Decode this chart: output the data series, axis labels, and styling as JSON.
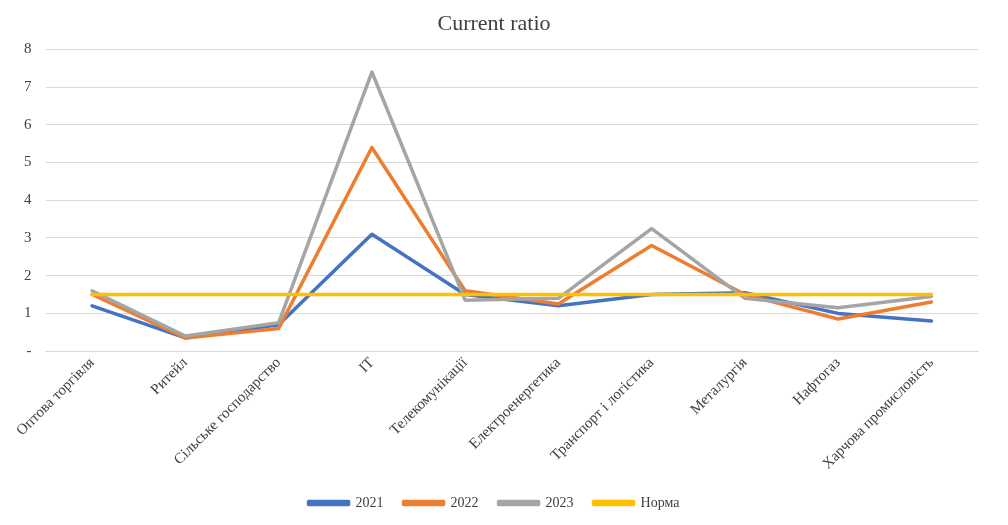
{
  "chart_data": {
    "type": "line",
    "title": "Current ratio",
    "categories": [
      "Оптова торгівля",
      "Ритейл",
      "Сільське господарство",
      "IT",
      "Телекомунікації",
      "Електроенергетика",
      "Транспорт і логістика",
      "Металургія",
      "Нафтогаз",
      "Харчова промисловість"
    ],
    "series": [
      {
        "name": "2021",
        "color": "#4472c4",
        "values": [
          1.2,
          0.35,
          0.7,
          3.1,
          1.5,
          1.2,
          1.5,
          1.55,
          1.0,
          0.8
        ]
      },
      {
        "name": "2022",
        "color": "#ed7d31",
        "values": [
          1.5,
          0.35,
          0.6,
          5.4,
          1.6,
          1.25,
          2.8,
          1.5,
          0.85,
          1.3
        ]
      },
      {
        "name": "2023",
        "color": "#a5a5a5",
        "values": [
          1.6,
          0.4,
          0.75,
          7.4,
          1.35,
          1.4,
          3.25,
          1.4,
          1.15,
          1.45
        ]
      },
      {
        "name": "Норма",
        "color": "#ffc000",
        "values": [
          1.5,
          1.5,
          1.5,
          1.5,
          1.5,
          1.5,
          1.5,
          1.5,
          1.5,
          1.5
        ]
      }
    ],
    "ylim": [
      0,
      8
    ],
    "yticks": [
      {
        "value": 0,
        "label": "-"
      },
      1,
      2,
      3,
      4,
      5,
      6,
      7,
      8
    ],
    "grid": "y",
    "legend": "bottom",
    "marker": "none",
    "line_style": "solid"
  }
}
